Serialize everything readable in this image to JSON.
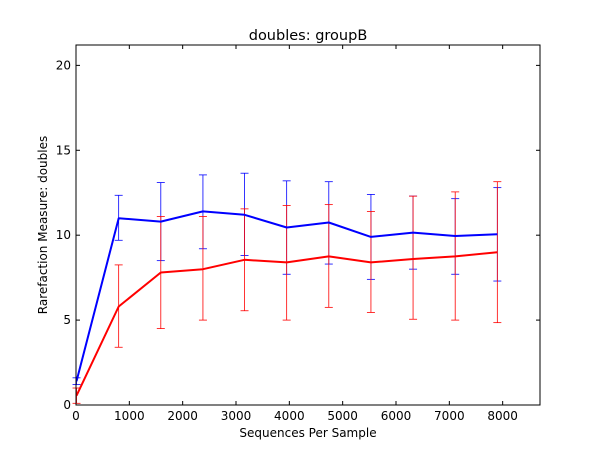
{
  "chart_data": {
    "type": "line",
    "title": "doubles: groupB",
    "xlabel": "Sequences Per Sample",
    "ylabel": "Rarefaction Measure: doubles",
    "xlim": [
      0,
      8700
    ],
    "ylim": [
      0,
      21.2
    ],
    "xticks": [
      0,
      1000,
      2000,
      3000,
      4000,
      5000,
      6000,
      7000,
      8000
    ],
    "yticks": [
      0,
      5,
      10,
      15,
      20
    ],
    "grid": false,
    "legend": "none",
    "x": [
      10,
      800,
      1590,
      2380,
      3160,
      3950,
      4740,
      5530,
      6320,
      7110,
      7900
    ],
    "series": [
      {
        "color": "#0000ff",
        "values": [
          1.4,
          11.0,
          10.8,
          11.4,
          11.2,
          10.45,
          10.75,
          9.9,
          10.15,
          9.95,
          10.05
        ],
        "err_low": [
          1.2,
          9.7,
          8.5,
          9.2,
          8.8,
          7.7,
          8.3,
          7.4,
          8.0,
          7.7,
          7.3
        ],
        "err_high": [
          1.6,
          12.35,
          13.1,
          13.55,
          13.65,
          13.2,
          13.15,
          12.4,
          12.3,
          12.15,
          12.8
        ]
      },
      {
        "color": "#ff0000",
        "values": [
          0.55,
          5.8,
          7.8,
          8.0,
          8.55,
          8.4,
          8.75,
          8.4,
          8.6,
          8.75,
          9.0
        ],
        "err_low": [
          0.1,
          3.4,
          4.5,
          5.0,
          5.55,
          5.0,
          5.75,
          5.45,
          5.05,
          5.0,
          4.85
        ],
        "err_high": [
          1.0,
          8.25,
          11.1,
          11.1,
          11.55,
          11.75,
          11.8,
          11.4,
          12.3,
          12.55,
          13.15
        ]
      }
    ]
  }
}
